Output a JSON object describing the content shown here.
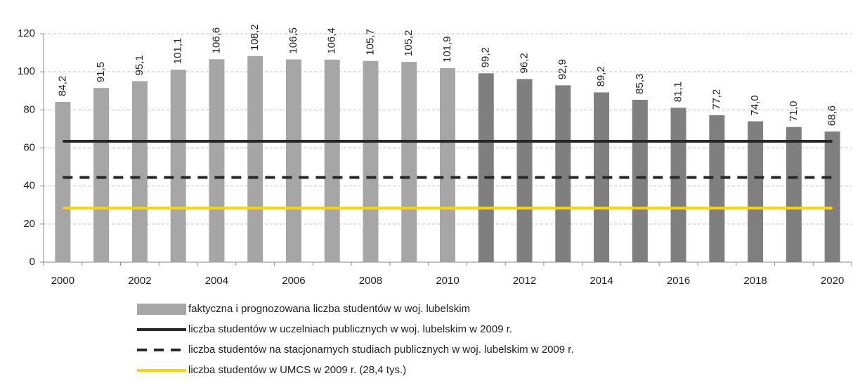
{
  "chart_data": {
    "type": "bar",
    "categories": [
      "2000",
      null,
      "2002",
      null,
      "2004",
      null,
      "2006",
      null,
      "2008",
      null,
      "2010",
      null,
      "2012",
      null,
      "2014",
      null,
      "2016",
      null,
      "2018",
      null,
      "2020"
    ],
    "series": [
      {
        "name": "faktyczna i prognozowana liczba studentów w woj. lubelskim",
        "color": "#a6a6a6",
        "colors": [
          "#a6a6a6",
          "#a6a6a6",
          "#a6a6a6",
          "#a6a6a6",
          "#a6a6a6",
          "#a6a6a6",
          "#a6a6a6",
          "#a6a6a6",
          "#a6a6a6",
          "#a6a6a6",
          "#a6a6a6",
          "#7f7f7f",
          "#7f7f7f",
          "#7f7f7f",
          "#7f7f7f",
          "#7f7f7f",
          "#7f7f7f",
          "#7f7f7f",
          "#7f7f7f",
          "#7f7f7f",
          "#7f7f7f"
        ],
        "values": [
          84.2,
          91.5,
          95.1,
          101.1,
          106.6,
          108.2,
          106.5,
          106.4,
          105.7,
          105.2,
          101.9,
          99.2,
          96.2,
          92.9,
          89.2,
          85.3,
          81.1,
          77.2,
          74.0,
          71.0,
          68.6
        ],
        "value_labels": [
          "84,2",
          "91,5",
          "95,1",
          "101,1",
          "106,6",
          "108,2",
          "106,5",
          "106,4",
          "105,7",
          "105,2",
          "101,9",
          "99,2",
          "96,2",
          "92,9",
          "89,2",
          "85,3",
          "81,1",
          "77,2",
          "74,0",
          "71,0",
          "68,6"
        ]
      }
    ],
    "reference_lines": [
      {
        "name": "liczba studentów w uczelniach publicznych w woj. lubelskim w 2009 r.",
        "value": 63.5,
        "color": "#262626",
        "dashed": false
      },
      {
        "name": "liczba studentów na stacjonarnych studiach publicznych w woj. lubelskim w 2009 r.",
        "value": 44.5,
        "color": "#262626",
        "dashed": true
      },
      {
        "name": "liczba studentów w UMCS w 2009 r. (28,4 tys.)",
        "value": 28.4,
        "color": "#ffd200",
        "dashed": false
      }
    ],
    "ylim": [
      0,
      120
    ],
    "yticks": [
      0,
      20,
      40,
      60,
      80,
      100,
      120
    ],
    "grid": true
  }
}
